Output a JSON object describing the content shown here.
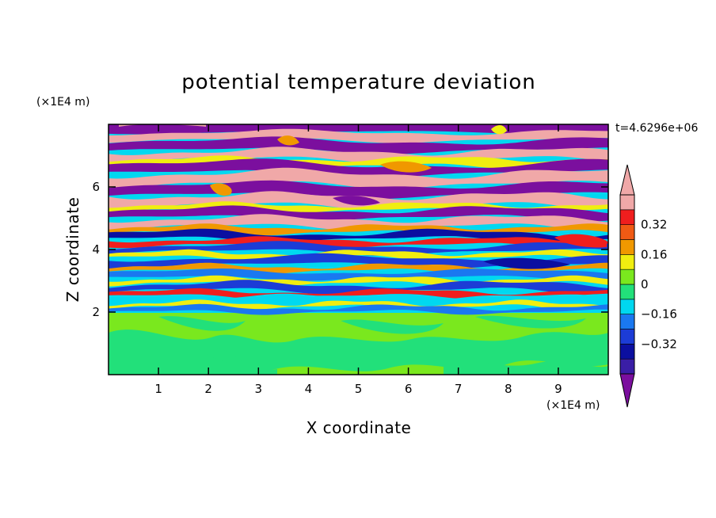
{
  "chart_data": {
    "type": "heatmap",
    "title": "potential temperature deviation",
    "xlabel": "X coordinate",
    "ylabel": "Z coordinate",
    "x_unit": "(×1E4 m)",
    "y_unit": "(×1E4 m)",
    "time_label": "t=4.6296e+06",
    "xlim": [
      0,
      10
    ],
    "ylim": [
      0,
      8
    ],
    "x_ticks": [
      1,
      2,
      3,
      4,
      5,
      6,
      7,
      8,
      9
    ],
    "y_ticks": [
      2,
      4,
      6
    ],
    "colorbar": {
      "levels": [
        -0.48,
        -0.4,
        -0.32,
        -0.24,
        -0.16,
        -0.08,
        0,
        0.08,
        0.16,
        0.24,
        0.32,
        0.4,
        0.48
      ],
      "colors": [
        "#7b0f9e",
        "#3a1ea6",
        "#0b0fa0",
        "#1c3cd6",
        "#1a78f0",
        "#00d8f0",
        "#22e07a",
        "#7ae81e",
        "#f0ee10",
        "#f09800",
        "#f05a14",
        "#f01e1e",
        "#f0a8a8"
      ],
      "tick_labels": [
        "0.32",
        "0.16",
        "0",
        "−0.16",
        "−0.32"
      ],
      "tick_values": [
        0.32,
        0.16,
        0,
        -0.16,
        -0.32
      ]
    },
    "field_summary": {
      "z_0_to_2": "weak deviations (0 to 0.08) with scattered positive patches",
      "z_2_to_8": "horizontal layered bands alternating between strongly negative (< -0.48) and strongly positive (> 0.48) values"
    }
  }
}
